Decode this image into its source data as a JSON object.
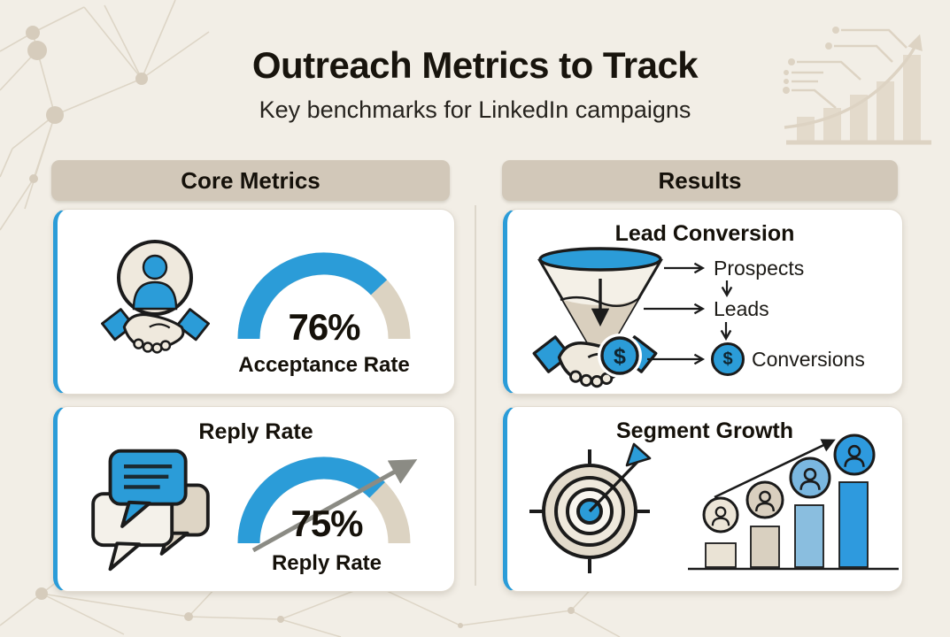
{
  "title": "Outreach Metrics to Track",
  "subtitle": "Key benchmarks for LinkedIn campaigns",
  "columns": {
    "core_metrics": {
      "header": "Core Metrics"
    },
    "results": {
      "header": "Results"
    }
  },
  "cards": {
    "acceptance_rate": {
      "value": "76%",
      "label": "Acceptance Rate",
      "percent": 76
    },
    "reply_rate": {
      "title": "Reply Rate",
      "value": "75%",
      "label": "Reply Rate",
      "percent": 75
    },
    "lead_conversion": {
      "title": "Lead Conversion",
      "currency_symbol": "$",
      "stages": [
        {
          "label": "Prospects"
        },
        {
          "label": "Leads"
        },
        {
          "label": "Conversions"
        }
      ]
    },
    "segment_growth": {
      "title": "Segment Growth"
    }
  },
  "chart_data": [
    {
      "type": "gauge",
      "title": "Acceptance Rate",
      "value_pct": 76,
      "range": [
        0,
        100
      ],
      "color": "#2b9cd8",
      "track_color": "#dcd3c2"
    },
    {
      "type": "gauge",
      "title": "Reply Rate",
      "value_pct": 75,
      "range": [
        0,
        100
      ],
      "color": "#2b9cd8",
      "track_color": "#dcd3c2",
      "annotation": "upward trend arrow through gauge"
    },
    {
      "type": "bar",
      "title": "Segment Growth",
      "values": [
        27,
        46,
        70,
        96
      ],
      "unit": "relative height (px), bars unlabeled",
      "colors": [
        "#eae3d5",
        "#d9d0c0",
        "#8abedf",
        "#2e9ade"
      ],
      "annotation": "audience avatars above each bar, rising trend arrow, no axis labels"
    }
  ],
  "colors": {
    "accent_blue": "#2b9cd8",
    "light_blue": "#7ab7e0",
    "tan": "#d2c8b9",
    "background": "#f2eee6"
  }
}
